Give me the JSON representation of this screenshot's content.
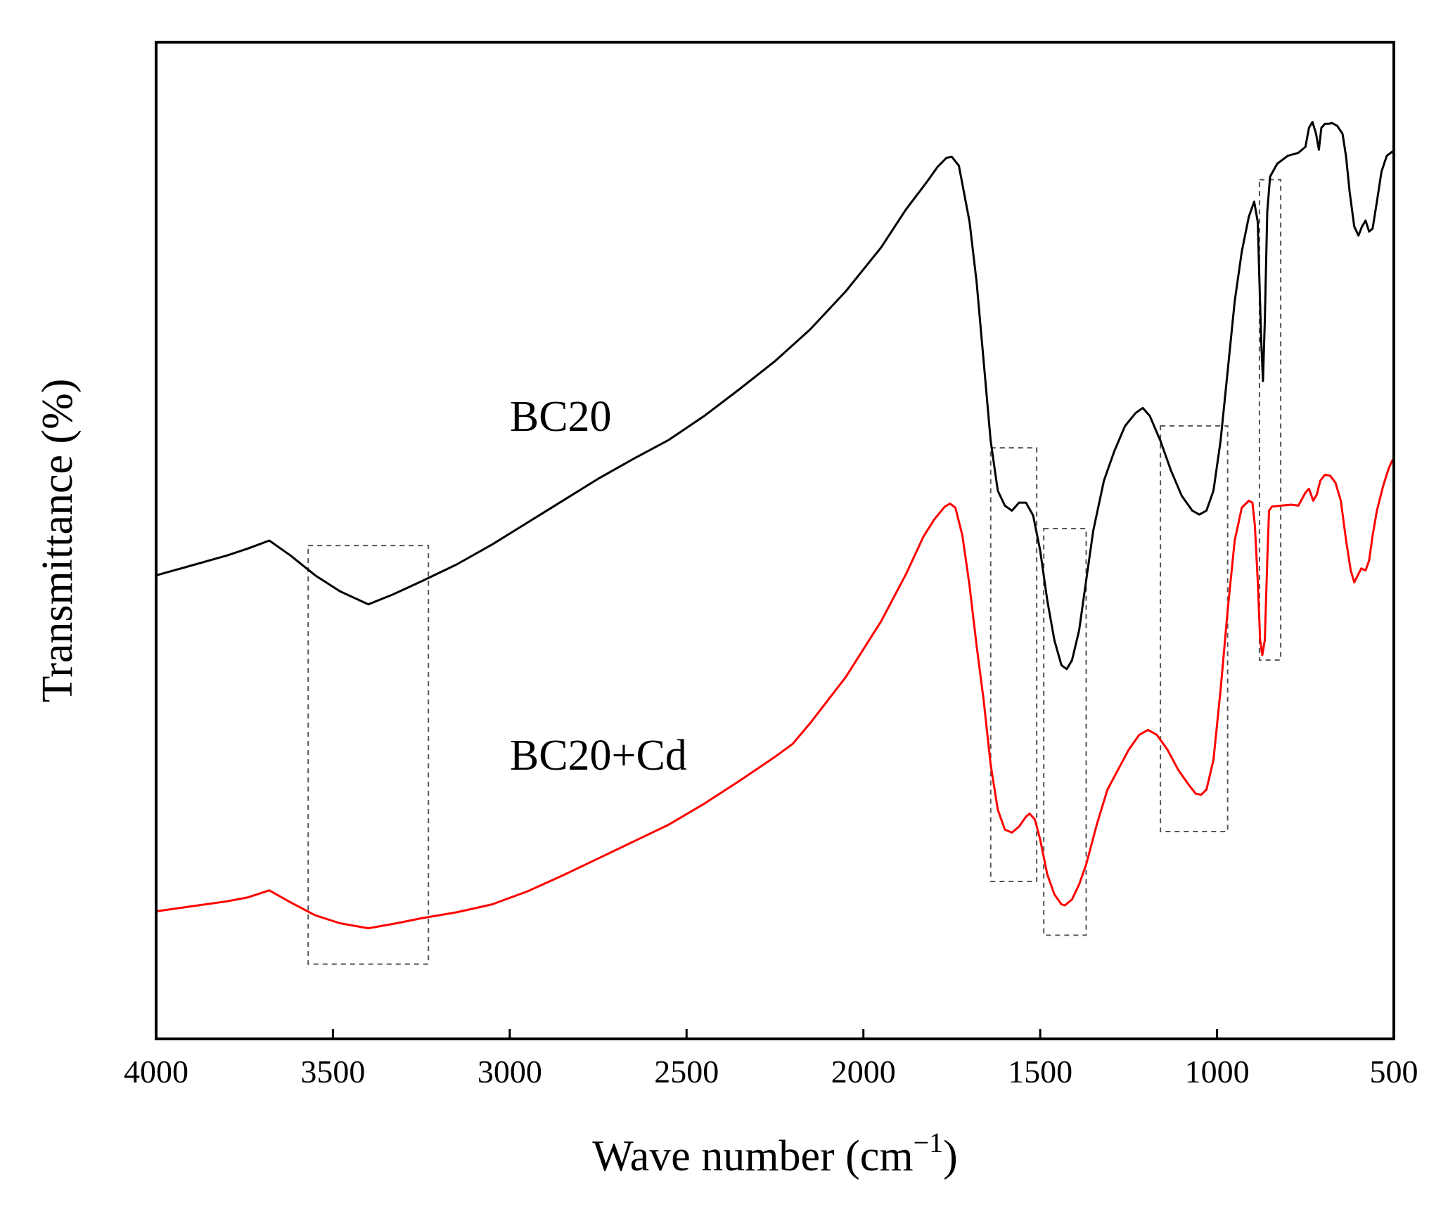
{
  "chart_data": {
    "type": "line",
    "title": "",
    "xlabel": "Wave number (cm",
    "xlabel_sup": "−1",
    "xlabel_close": ")",
    "ylabel": "Transmittance (%)",
    "xlim": [
      4000,
      500
    ],
    "ylim": [
      0,
      100
    ],
    "x_ticks": [
      4000,
      3500,
      3000,
      2500,
      2000,
      1500,
      1000,
      500
    ],
    "x_tick_labels": [
      "4000",
      "3500",
      "3000",
      "2500",
      "2000",
      "1500",
      "1000",
      "500"
    ],
    "grid": false,
    "series": [
      {
        "name": "BC20",
        "color": "#000000",
        "label_at": [
          3000,
          61
        ],
        "points": [
          [
            4000,
            46.5
          ],
          [
            3900,
            47.5
          ],
          [
            3800,
            48.5
          ],
          [
            3740,
            49.2
          ],
          [
            3680,
            50.0
          ],
          [
            3620,
            48.5
          ],
          [
            3550,
            46.5
          ],
          [
            3480,
            44.9
          ],
          [
            3400,
            43.6
          ],
          [
            3330,
            44.6
          ],
          [
            3250,
            45.9
          ],
          [
            3150,
            47.6
          ],
          [
            3050,
            49.6
          ],
          [
            2950,
            51.8
          ],
          [
            2850,
            54.0
          ],
          [
            2750,
            56.2
          ],
          [
            2650,
            58.2
          ],
          [
            2550,
            60.1
          ],
          [
            2450,
            62.5
          ],
          [
            2350,
            65.2
          ],
          [
            2250,
            68.0
          ],
          [
            2150,
            71.2
          ],
          [
            2050,
            75.0
          ],
          [
            1950,
            79.4
          ],
          [
            1880,
            83.2
          ],
          [
            1820,
            86.0
          ],
          [
            1790,
            87.5
          ],
          [
            1765,
            88.4
          ],
          [
            1750,
            88.5
          ],
          [
            1730,
            87.6
          ],
          [
            1700,
            82.0
          ],
          [
            1680,
            76.0
          ],
          [
            1660,
            68.0
          ],
          [
            1640,
            60.0
          ],
          [
            1620,
            55.0
          ],
          [
            1600,
            53.5
          ],
          [
            1580,
            53.0
          ],
          [
            1560,
            53.8
          ],
          [
            1540,
            53.8
          ],
          [
            1520,
            52.5
          ],
          [
            1500,
            49.0
          ],
          [
            1480,
            44.0
          ],
          [
            1460,
            40.0
          ],
          [
            1440,
            37.5
          ],
          [
            1425,
            37.1
          ],
          [
            1410,
            38.0
          ],
          [
            1390,
            41.0
          ],
          [
            1370,
            46.0
          ],
          [
            1350,
            51.0
          ],
          [
            1320,
            56.0
          ],
          [
            1290,
            59.0
          ],
          [
            1260,
            61.5
          ],
          [
            1230,
            62.8
          ],
          [
            1210,
            63.3
          ],
          [
            1190,
            62.5
          ],
          [
            1160,
            60.0
          ],
          [
            1130,
            57.0
          ],
          [
            1100,
            54.5
          ],
          [
            1070,
            53.0
          ],
          [
            1050,
            52.6
          ],
          [
            1030,
            53.0
          ],
          [
            1010,
            55.0
          ],
          [
            990,
            60.0
          ],
          [
            970,
            67.0
          ],
          [
            950,
            74.0
          ],
          [
            930,
            79.0
          ],
          [
            910,
            82.5
          ],
          [
            895,
            84.0
          ],
          [
            885,
            82.0
          ],
          [
            875,
            70.0
          ],
          [
            870,
            66.0
          ],
          [
            865,
            72.0
          ],
          [
            858,
            83.0
          ],
          [
            850,
            86.5
          ],
          [
            830,
            87.8
          ],
          [
            800,
            88.6
          ],
          [
            770,
            88.9
          ],
          [
            750,
            89.5
          ],
          [
            740,
            91.4
          ],
          [
            730,
            92.0
          ],
          [
            720,
            90.8
          ],
          [
            712,
            89.2
          ],
          [
            705,
            91.4
          ],
          [
            695,
            91.8
          ],
          [
            685,
            91.8
          ],
          [
            675,
            91.9
          ],
          [
            660,
            91.6
          ],
          [
            645,
            90.8
          ],
          [
            635,
            88.5
          ],
          [
            625,
            85.0
          ],
          [
            612,
            81.5
          ],
          [
            600,
            80.6
          ],
          [
            590,
            81.5
          ],
          [
            580,
            82.1
          ],
          [
            570,
            81.0
          ],
          [
            560,
            81.3
          ],
          [
            548,
            84.0
          ],
          [
            535,
            87.0
          ],
          [
            520,
            88.6
          ],
          [
            505,
            89.0
          ],
          [
            500,
            88.8
          ]
        ]
      },
      {
        "name": "BC20+Cd",
        "color": "#ff0000",
        "label_at": [
          3000,
          27
        ],
        "points": [
          [
            4000,
            12.8
          ],
          [
            3900,
            13.3
          ],
          [
            3800,
            13.8
          ],
          [
            3740,
            14.2
          ],
          [
            3680,
            14.9
          ],
          [
            3620,
            13.7
          ],
          [
            3550,
            12.4
          ],
          [
            3480,
            11.6
          ],
          [
            3400,
            11.1
          ],
          [
            3320,
            11.6
          ],
          [
            3250,
            12.1
          ],
          [
            3150,
            12.7
          ],
          [
            3050,
            13.5
          ],
          [
            2950,
            14.8
          ],
          [
            2850,
            16.4
          ],
          [
            2750,
            18.1
          ],
          [
            2650,
            19.8
          ],
          [
            2550,
            21.5
          ],
          [
            2450,
            23.6
          ],
          [
            2350,
            25.9
          ],
          [
            2250,
            28.3
          ],
          [
            2200,
            29.6
          ],
          [
            2150,
            31.7
          ],
          [
            2050,
            36.3
          ],
          [
            1950,
            41.9
          ],
          [
            1880,
            46.6
          ],
          [
            1830,
            50.4
          ],
          [
            1800,
            52.1
          ],
          [
            1770,
            53.4
          ],
          [
            1755,
            53.7
          ],
          [
            1740,
            53.3
          ],
          [
            1720,
            50.5
          ],
          [
            1700,
            45.5
          ],
          [
            1680,
            39.5
          ],
          [
            1660,
            34.0
          ],
          [
            1640,
            27.5
          ],
          [
            1620,
            23.0
          ],
          [
            1600,
            21.0
          ],
          [
            1580,
            20.7
          ],
          [
            1560,
            21.3
          ],
          [
            1540,
            22.3
          ],
          [
            1530,
            22.6
          ],
          [
            1515,
            22.0
          ],
          [
            1500,
            20.0
          ],
          [
            1480,
            16.5
          ],
          [
            1460,
            14.5
          ],
          [
            1440,
            13.5
          ],
          [
            1430,
            13.4
          ],
          [
            1410,
            14.0
          ],
          [
            1390,
            15.5
          ],
          [
            1370,
            17.5
          ],
          [
            1340,
            21.5
          ],
          [
            1310,
            25.0
          ],
          [
            1280,
            27.0
          ],
          [
            1250,
            29.0
          ],
          [
            1220,
            30.5
          ],
          [
            1195,
            31.0
          ],
          [
            1170,
            30.5
          ],
          [
            1140,
            29.0
          ],
          [
            1110,
            27.0
          ],
          [
            1080,
            25.5
          ],
          [
            1060,
            24.6
          ],
          [
            1045,
            24.5
          ],
          [
            1030,
            25.0
          ],
          [
            1010,
            28.0
          ],
          [
            990,
            35.0
          ],
          [
            970,
            43.0
          ],
          [
            950,
            50.0
          ],
          [
            930,
            53.3
          ],
          [
            910,
            54.0
          ],
          [
            900,
            53.8
          ],
          [
            893,
            51.5
          ],
          [
            885,
            46.0
          ],
          [
            878,
            40.0
          ],
          [
            872,
            38.5
          ],
          [
            865,
            40.0
          ],
          [
            858,
            48.0
          ],
          [
            853,
            53.0
          ],
          [
            845,
            53.4
          ],
          [
            820,
            53.5
          ],
          [
            790,
            53.6
          ],
          [
            770,
            53.5
          ],
          [
            750,
            54.8
          ],
          [
            740,
            55.2
          ],
          [
            728,
            54.0
          ],
          [
            718,
            54.6
          ],
          [
            708,
            56.0
          ],
          [
            695,
            56.6
          ],
          [
            680,
            56.5
          ],
          [
            665,
            55.8
          ],
          [
            650,
            54.0
          ],
          [
            635,
            50.0
          ],
          [
            622,
            47.0
          ],
          [
            612,
            45.8
          ],
          [
            602,
            46.5
          ],
          [
            592,
            47.2
          ],
          [
            580,
            47.0
          ],
          [
            570,
            48.0
          ],
          [
            560,
            50.5
          ],
          [
            548,
            53.0
          ],
          [
            530,
            55.5
          ],
          [
            515,
            57.2
          ],
          [
            505,
            58.0
          ],
          [
            500,
            58.2
          ]
        ]
      }
    ],
    "highlight_regions": [
      {
        "x_range": [
          3570,
          3230
        ],
        "y_range": [
          7.5,
          49.5
        ]
      },
      {
        "x_range": [
          1640,
          1510
        ],
        "y_range": [
          15.8,
          59.3
        ]
      },
      {
        "x_range": [
          1490,
          1370
        ],
        "y_range": [
          10.4,
          51.2
        ]
      },
      {
        "x_range": [
          1160,
          970
        ],
        "y_range": [
          20.8,
          61.5
        ]
      },
      {
        "x_range": [
          880,
          820
        ],
        "y_range": [
          38.0,
          86.2
        ]
      }
    ]
  }
}
